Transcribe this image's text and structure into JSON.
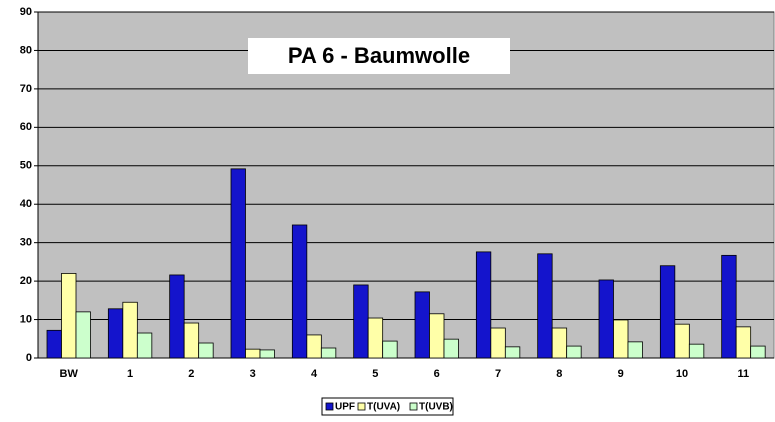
{
  "chart_data": {
    "type": "bar",
    "title": "PA 6 - Baumwolle",
    "categories": [
      "BW",
      "1",
      "2",
      "3",
      "4",
      "5",
      "6",
      "7",
      "8",
      "9",
      "10",
      "11"
    ],
    "series": [
      {
        "name": "UPF",
        "color": "#1414cc",
        "values": [
          7.2,
          12.8,
          21.6,
          49.2,
          34.6,
          19,
          17.2,
          27.6,
          27.1,
          20.3,
          24,
          26.7
        ]
      },
      {
        "name": "T(UVA)",
        "color": "#ffffa8",
        "values": [
          22,
          14.5,
          9.1,
          2.3,
          6,
          10.4,
          11.5,
          7.8,
          7.8,
          9.9,
          8.8,
          8.1
        ]
      },
      {
        "name": "T(UVB)",
        "color": "#ccffcc",
        "values": [
          12,
          6.5,
          3.9,
          2.1,
          2.6,
          4.4,
          4.9,
          2.9,
          3.1,
          4.2,
          3.6,
          3.1
        ]
      }
    ],
    "ylim": [
      0,
      90
    ],
    "yticks": [
      0,
      10,
      20,
      30,
      40,
      50,
      60,
      70,
      80,
      90
    ],
    "grid": true,
    "legend": "bottom"
  }
}
